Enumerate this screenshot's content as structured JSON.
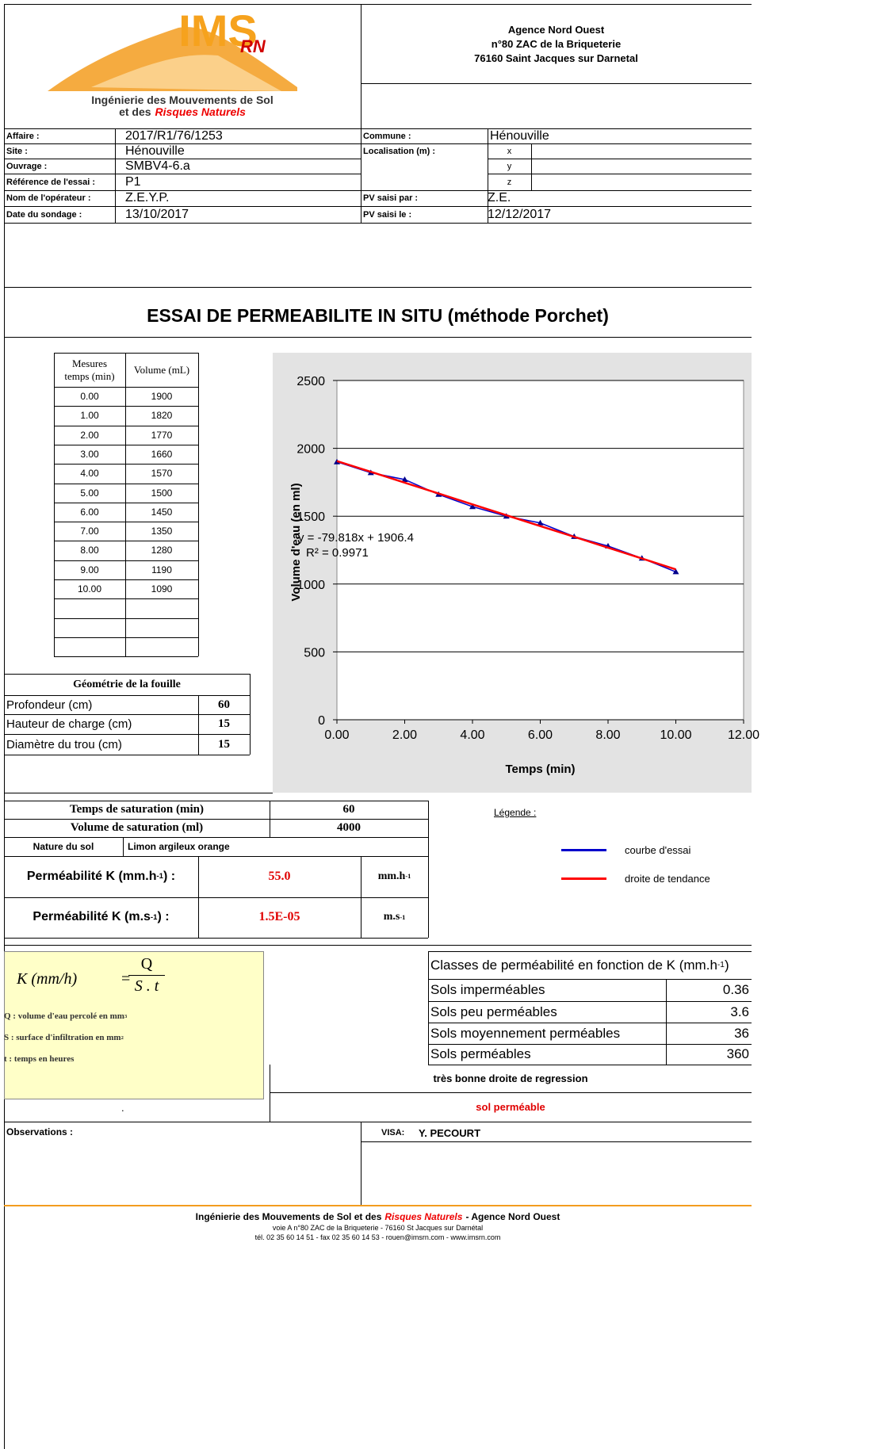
{
  "header": {
    "logo_main": "IMS",
    "logo_sub": "RN",
    "logo_line1": "Ingénierie des Mouvements de Sol",
    "logo_line2_prefix": "et des",
    "logo_line2_em": "Risques Naturels",
    "address": [
      "Agence Nord Ouest",
      "n°80 ZAC de la Briqueterie",
      "76160 Saint Jacques sur Darnetal"
    ]
  },
  "fields": {
    "left": [
      [
        "Affaire :",
        "2017/R1/76/1253"
      ],
      [
        "Site :",
        "Hénouville"
      ],
      [
        "Ouvrage :",
        "SMBV4-6.a"
      ],
      [
        "Référence de l'essai :",
        "P1"
      ],
      [
        "Nom de l'opérateur :",
        "Z.E.Y.P."
      ],
      [
        "Date du sondage :",
        "13/10/2017"
      ]
    ],
    "commune": [
      "Commune :",
      "Hénouville"
    ],
    "localisation": "Localisation (m) :",
    "coords": [
      "x",
      "y",
      "z"
    ],
    "pv_par": [
      "PV saisi par :",
      "Z.E."
    ],
    "pv_le": [
      "PV saisi le :",
      "12/12/2017"
    ]
  },
  "title": "ESSAI DE PERMEABILITE IN SITU (méthode Porchet)",
  "measures": {
    "headers": [
      [
        "Mesures",
        "temps (min)"
      ],
      "Volume (mL)"
    ],
    "rows": [
      [
        "0.00",
        "1900"
      ],
      [
        "1.00",
        "1820"
      ],
      [
        "2.00",
        "1770"
      ],
      [
        "3.00",
        "1660"
      ],
      [
        "4.00",
        "1570"
      ],
      [
        "5.00",
        "1500"
      ],
      [
        "6.00",
        "1450"
      ],
      [
        "7.00",
        "1350"
      ],
      [
        "8.00",
        "1280"
      ],
      [
        "9.00",
        "1190"
      ],
      [
        "10.00",
        "1090"
      ]
    ]
  },
  "geometry": {
    "title": "Géométrie de la fouille",
    "rows": [
      [
        "Profondeur  (cm)",
        "60"
      ],
      [
        "Hauteur de charge (cm)",
        "15"
      ],
      [
        "Diamètre du trou (cm)",
        "15"
      ]
    ]
  },
  "saturation": {
    "rows": [
      [
        "Temps de saturation (min)",
        "60"
      ],
      [
        "Volume de saturation (ml)",
        "4000"
      ]
    ],
    "nature": [
      "Nature du sol",
      "Limon argileux orange"
    ]
  },
  "permeability": [
    {
      "label": "Perméabilité K (mm.h",
      "sup": "-1",
      "tail": ") :",
      "value": "55.0",
      "unit": "mm.h",
      "unit_sup": "-1"
    },
    {
      "label": "Perméabilité K (m.s",
      "sup": "-1",
      "tail": ") :",
      "value": "1.5E-05",
      "unit": "m.s",
      "unit_sup": "-1"
    }
  ],
  "formula": {
    "lhs": "K  (mm/h)",
    "eq": "=",
    "num": "Q",
    "den": "S . t",
    "notes": [
      {
        "text": "Q : volume d'eau percolé en mm",
        "sup": "3"
      },
      {
        "text": "S : surface d'infiltration en mm",
        "sup": "2"
      },
      {
        "text": "t : temps en heures"
      }
    ]
  },
  "classes": {
    "title": "Classes de perméabilité en fonction de K (mm.h",
    "title_sup": "-1",
    "title_tail": ")",
    "rows": [
      [
        "Sols imperméables",
        "0.36"
      ],
      [
        "Sols peu perméables",
        "3.6"
      ],
      [
        "Sols moyennement perméables",
        "36"
      ],
      [
        "Sols  perméables",
        "360"
      ]
    ]
  },
  "conclusion": [
    "très bonne droite de regression",
    "sol perméable"
  ],
  "dot": ".",
  "observations": "Observations :",
  "visa": [
    "VISA:",
    "Y. PECOURT"
  ],
  "footer": {
    "line1": [
      "Ingénierie des Mouvements de Sol et des",
      "Risques Naturels",
      "- Agence Nord Ouest"
    ],
    "line2": "voie A n°80 ZAC de la Briqueterie - 76160 St Jacques sur Darnétal",
    "line3": "tél. 02 35 60 14 51 - fax 02 35 60 14 53 - rouen@imsrn.com - www.imsrn.com"
  },
  "chart_data": {
    "type": "line",
    "x": [
      0,
      1,
      2,
      3,
      4,
      5,
      6,
      7,
      8,
      9,
      10
    ],
    "xlabel": "Temps (min)",
    "ylabel": "Volume d'eau (en ml)",
    "series": [
      {
        "name": "courbe d'essai",
        "color": "#0000cc",
        "marker": "triangle",
        "values": [
          1900,
          1820,
          1770,
          1660,
          1570,
          1500,
          1450,
          1350,
          1280,
          1190,
          1090
        ]
      },
      {
        "name": "droite de tendance",
        "color": "#ff0000",
        "values": [
          1906,
          1827,
          1747,
          1667,
          1587,
          1507,
          1427,
          1348,
          1268,
          1188,
          1108
        ]
      }
    ],
    "annotations": [
      "y = -79.818x + 1906.4",
      "R² = 0.9971"
    ],
    "legend_title": "Légende :",
    "xlim": [
      0,
      12
    ],
    "ylim": [
      0,
      2500
    ],
    "xticks": [
      {
        "value": 0,
        "label": "0.00"
      },
      {
        "value": 2,
        "label": "2.00"
      },
      {
        "value": 4,
        "label": "4.00"
      },
      {
        "value": 6,
        "label": "6.00"
      },
      {
        "value": 8,
        "label": "8.00"
      },
      {
        "value": 10,
        "label": "10.00"
      },
      {
        "value": 12,
        "label": "12.00"
      }
    ],
    "yticks": [
      0,
      500,
      1000,
      1500,
      2000,
      2500
    ],
    "grid": true
  }
}
